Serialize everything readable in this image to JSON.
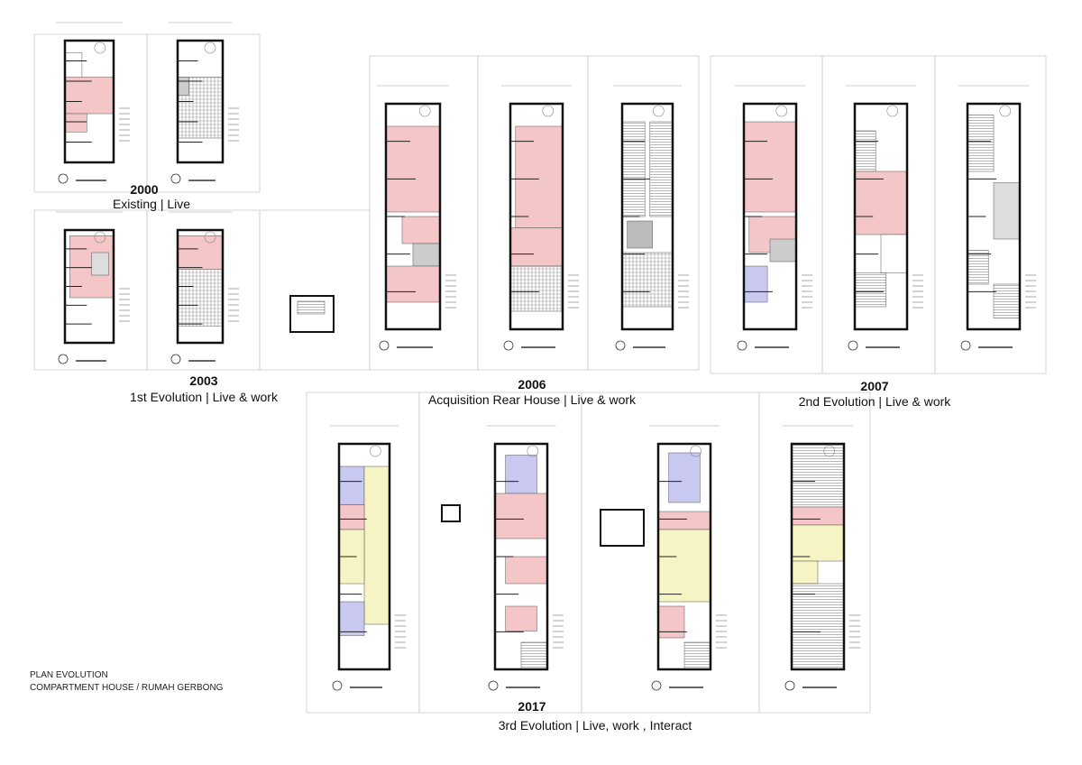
{
  "title_block": {
    "line1": "PLAN EVOLUTION",
    "line2": "COMPARTMENT HOUSE  / RUMAH GERBONG"
  },
  "stages": [
    {
      "year": "2000",
      "caption": "Existing | Live"
    },
    {
      "year": "2003",
      "caption": "1st Evolution | Live & work"
    },
    {
      "year": "2006",
      "caption": "Acquisition Rear House | Live & work"
    },
    {
      "year": "2007",
      "caption": "2nd Evolution  | Live & work"
    },
    {
      "year": "2017",
      "caption": "3rd Evolution  | Live, work , Interact"
    }
  ],
  "colors": {
    "private": "#f4c6c8",
    "work": "#c8c8f0",
    "interact": "#f6f3c4",
    "wall": "#111111",
    "frame": "#cccccc",
    "hatch": "#999999"
  }
}
